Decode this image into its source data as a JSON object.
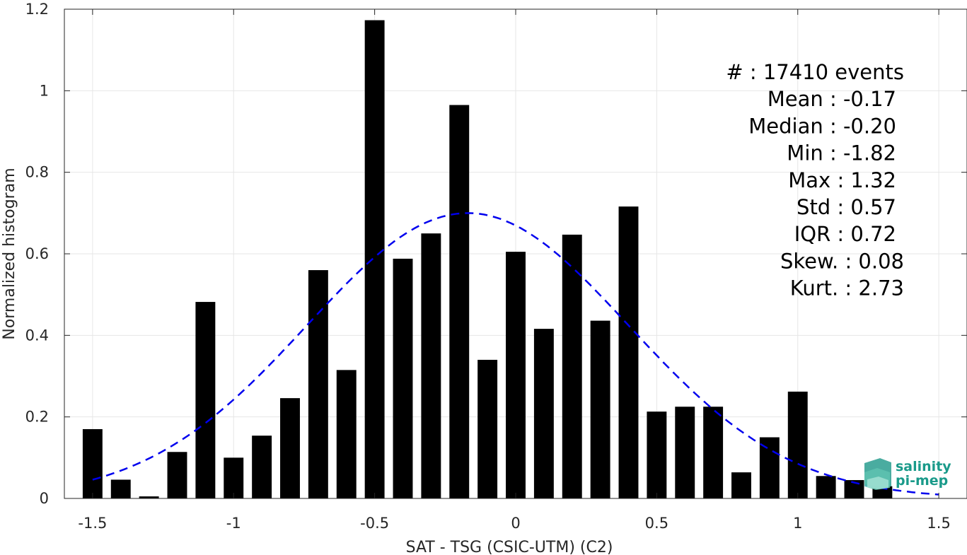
{
  "chart_data": {
    "type": "bar",
    "xlabel": "SAT - TSG (CSIC-UTM) (C2)",
    "ylabel": "Normalized histogram",
    "xlim": [
      -1.6,
      1.6
    ],
    "ylim": [
      0,
      1.2
    ],
    "xticks": [
      -1.5,
      -1,
      -0.5,
      0,
      0.5,
      1,
      1.5
    ],
    "xtick_labels": [
      "-1.5",
      "-1",
      "-0.5",
      "0",
      "0.5",
      "1",
      "1.5"
    ],
    "yticks": [
      0,
      0.2,
      0.4,
      0.6,
      0.8,
      1,
      1.2
    ],
    "ytick_labels": [
      "0",
      "0.2",
      "0.4",
      "0.6",
      "0.8",
      "1",
      "1.2"
    ],
    "grid": true,
    "bar_color": "#000000",
    "bars": {
      "x": [
        -1.5,
        -1.4,
        -1.3,
        -1.2,
        -1.1,
        -1.0,
        -0.9,
        -0.8,
        -0.7,
        -0.6,
        -0.5,
        -0.4,
        -0.3,
        -0.2,
        -0.1,
        0.0,
        0.1,
        0.2,
        0.3,
        0.4,
        0.5,
        0.6,
        0.7,
        0.8,
        0.9,
        1.0,
        1.1,
        1.2,
        1.3
      ],
      "values": [
        0.17,
        0.046,
        0.005,
        0.114,
        0.482,
        0.1,
        0.154,
        0.246,
        0.56,
        0.315,
        1.173,
        0.588,
        0.65,
        0.965,
        0.34,
        0.605,
        0.416,
        0.647,
        0.436,
        0.716,
        0.213,
        0.225,
        0.225,
        0.064,
        0.15,
        0.262,
        0.055,
        0.045,
        0.03
      ]
    },
    "fit_curve": {
      "style": "dashed",
      "color": "#0000ee",
      "mean": -0.17,
      "std": 0.57,
      "x_range": [
        -1.5,
        1.5
      ]
    },
    "stats": [
      {
        "label": "#",
        "value": ": 17410 events"
      },
      {
        "label": "Mean",
        "value": ": -0.17"
      },
      {
        "label": "Median",
        "value": ": -0.20"
      },
      {
        "label": "Min",
        "value": ": -1.82"
      },
      {
        "label": "Max",
        "value": ": 1.32"
      },
      {
        "label": "Std",
        "value": ": 0.57"
      },
      {
        "label": "IQR",
        "value": ": 0.72"
      },
      {
        "label": "Skew.",
        "value": ": 0.08"
      },
      {
        "label": "Kurt.",
        "value": ": 2.73"
      }
    ]
  },
  "logo": {
    "line1": "salinity",
    "line2": "pi-mep",
    "color": "#1a9a8a"
  }
}
